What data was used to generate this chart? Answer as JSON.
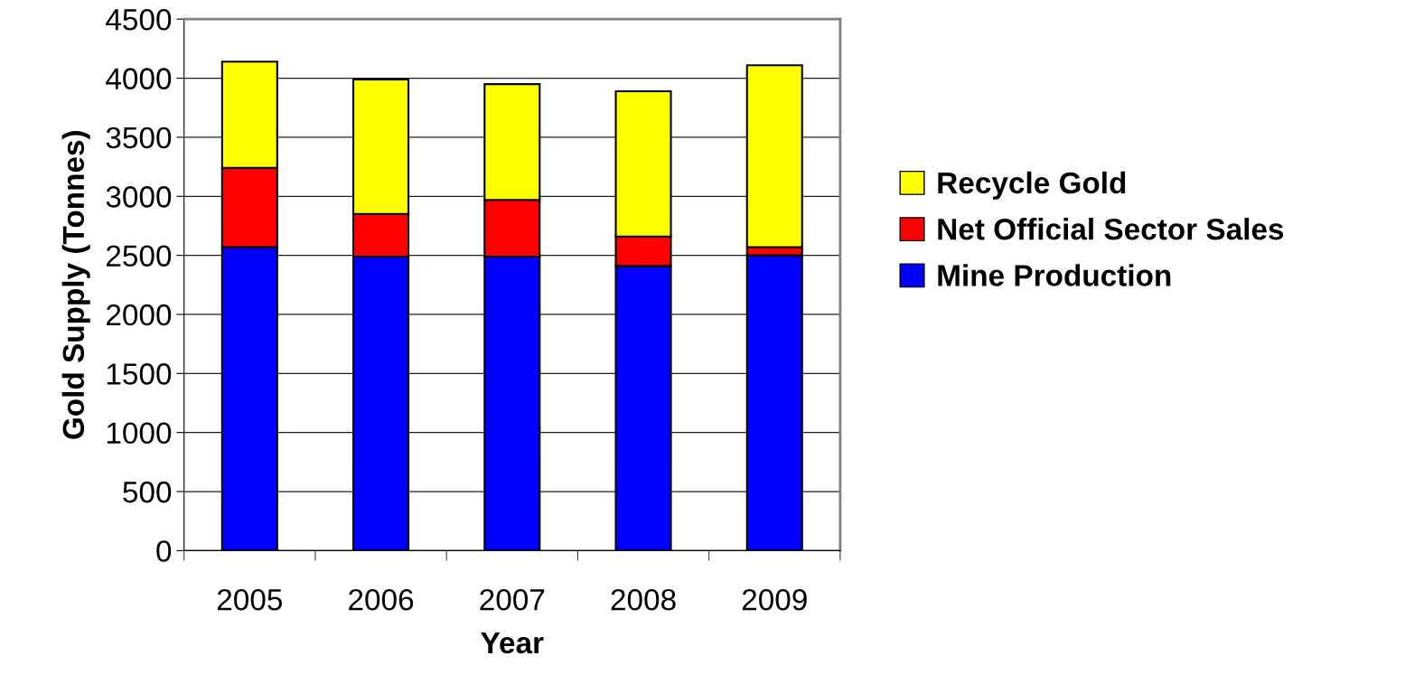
{
  "chart_data": {
    "type": "bar",
    "stacked": true,
    "xlabel": "Year",
    "ylabel": "Gold Supply (Tonnes)",
    "categories": [
      "2005",
      "2006",
      "2007",
      "2008",
      "2009"
    ],
    "series": [
      {
        "name": "Mine Production",
        "color": "#0000ff",
        "values": [
          2570,
          2490,
          2490,
          2410,
          2500
        ]
      },
      {
        "name": "Net Official Sector Sales",
        "color": "#ff0000",
        "values": [
          670,
          360,
          480,
          250,
          70
        ]
      },
      {
        "name": "Recycle Gold",
        "color": "#ffff00",
        "values": [
          900,
          1140,
          980,
          1230,
          1540
        ]
      }
    ],
    "ylim": [
      0,
      4500
    ],
    "yticks": [
      0,
      500,
      1000,
      1500,
      2000,
      2500,
      3000,
      3500,
      4000,
      4500
    ],
    "grid": "y",
    "legend": "right"
  }
}
